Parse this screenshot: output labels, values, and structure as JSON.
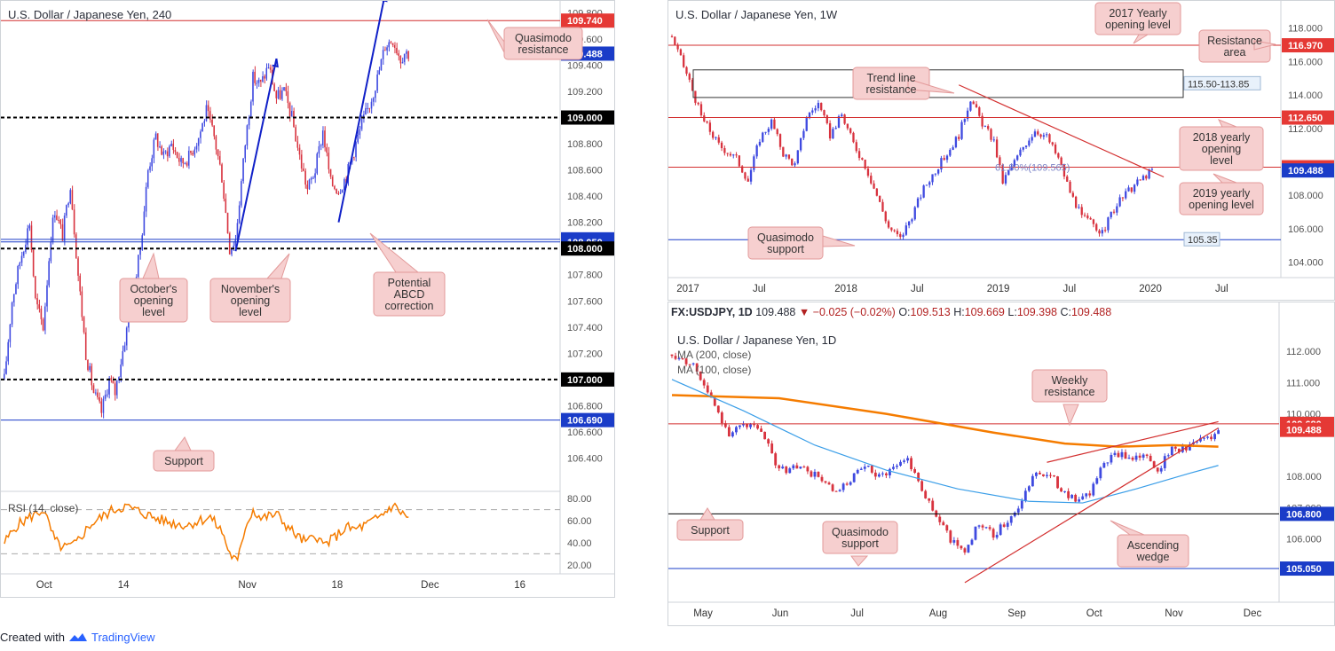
{
  "colors": {
    "bull": "#3f4ae0",
    "bear": "#d8333f",
    "res": "#d32f2f",
    "sup": "#1a3cc8",
    "callout_bg": "#f6cfcf",
    "callout_border": "#e39a9a",
    "sma200": "#f57c00",
    "sma100": "#3a9ee8",
    "rsi": "#f57c00"
  },
  "chart_data": [
    {
      "type": "candlestick",
      "title": "U.S. Dollar / Japanese Yen, 240",
      "x_ticks": [
        "Oct",
        "14",
        "Nov",
        "18",
        "Dec",
        "16"
      ],
      "y_ticks": [
        "109.800",
        "109.600",
        "109.400",
        "109.200",
        "108.800",
        "108.600",
        "108.400",
        "108.200",
        "107.800",
        "107.600",
        "107.400",
        "107.200",
        "106.800",
        "106.600",
        "106.400"
      ],
      "ylim": [
        106.2,
        109.85
      ],
      "path": [
        [
          0,
          107.0
        ],
        [
          4,
          107.6
        ],
        [
          8,
          107.9
        ],
        [
          13,
          108.2
        ],
        [
          16,
          107.6
        ],
        [
          20,
          107.4
        ],
        [
          24,
          108.1
        ],
        [
          26,
          108.3
        ],
        [
          30,
          108.1
        ],
        [
          34,
          108.5
        ],
        [
          38,
          107.8
        ],
        [
          42,
          107.2
        ],
        [
          46,
          106.9
        ],
        [
          50,
          106.75
        ],
        [
          54,
          107.0
        ],
        [
          57,
          106.9
        ],
        [
          62,
          107.3
        ],
        [
          66,
          107.6
        ],
        [
          70,
          108.0
        ],
        [
          74,
          108.6
        ],
        [
          78,
          108.85
        ],
        [
          82,
          108.7
        ],
        [
          86,
          108.8
        ],
        [
          91,
          108.65
        ],
        [
          95,
          108.7
        ],
        [
          100,
          108.85
        ],
        [
          104,
          109.05
        ],
        [
          108,
          108.85
        ],
        [
          112,
          108.55
        ],
        [
          116,
          108.0
        ],
        [
          119,
          108.07
        ],
        [
          124,
          108.8
        ],
        [
          128,
          109.3
        ],
        [
          132,
          109.25
        ],
        [
          136,
          109.4
        ],
        [
          140,
          109.15
        ],
        [
          144,
          109.2
        ],
        [
          148,
          109.0
        ],
        [
          152,
          108.7
        ],
        [
          156,
          108.45
        ],
        [
          160,
          108.6
        ],
        [
          164,
          108.9
        ],
        [
          168,
          108.5
        ],
        [
          172,
          108.45
        ],
        [
          176,
          108.55
        ],
        [
          180,
          108.75
        ],
        [
          184,
          108.95
        ],
        [
          188,
          109.1
        ],
        [
          192,
          109.3
        ],
        [
          196,
          109.55
        ],
        [
          200,
          109.6
        ],
        [
          204,
          109.45
        ],
        [
          206,
          109.5
        ],
        [
          208,
          109.49
        ]
      ],
      "x_end": 208,
      "xlim": [
        0,
        286
      ],
      "x_tick_pos": [
        20,
        62,
        124,
        172,
        218,
        266
      ],
      "h_lines": [
        {
          "price": 109.74,
          "label": "109.740",
          "color": "#d32f2f",
          "label_bg": "#e53935",
          "style": "solid"
        },
        {
          "price": 109.488,
          "label": "109.488",
          "color": "#1a3cc8",
          "label_bg": "#1a3cc8",
          "style": "none"
        },
        {
          "price": 109.0,
          "label": "109.000",
          "color": "#000000",
          "label_bg": "#000000",
          "style": "dashed"
        },
        {
          "price": 108.07,
          "label": "108.070",
          "color": "#1a3cc8",
          "label_bg": "#1a3cc8",
          "style": "solid"
        },
        {
          "price": 108.05,
          "label": "108.050",
          "color": "#1a3cc8",
          "label_bg": "#1a3cc8",
          "style": "solid"
        },
        {
          "price": 108.0,
          "label": "108.000",
          "color": "#000000",
          "label_bg": "#000000",
          "style": "dashed"
        },
        {
          "price": 107.0,
          "label": "107.000",
          "color": "#000000",
          "label_bg": "#000000",
          "style": "dashed"
        },
        {
          "price": 106.69,
          "label": "106.690",
          "color": "#1a3cc8",
          "label_bg": "#1a3cc8",
          "style": "solid"
        }
      ],
      "arrows": [
        [
          [
            119,
            107.98
          ],
          [
            140,
            109.45
          ]
        ],
        [
          [
            172,
            108.2
          ],
          [
            196,
            109.95
          ]
        ]
      ],
      "callouts": [
        {
          "text": [
            "Quasimodo",
            "resistance"
          ]
        },
        {
          "text": [
            "October's",
            "opening",
            "level"
          ]
        },
        {
          "text": [
            "November's",
            "opening",
            "level"
          ]
        },
        {
          "text": [
            "Potential",
            "ABCD",
            "correction"
          ]
        },
        {
          "text": [
            "Support"
          ]
        }
      ],
      "rsi": {
        "label": "RSI (14, close)",
        "y_ticks": [
          "80.00",
          "60.00",
          "40.00",
          "20.00"
        ],
        "levels": [
          70,
          30
        ],
        "path": [
          [
            0,
            40
          ],
          [
            6,
            55
          ],
          [
            12,
            62
          ],
          [
            20,
            70
          ],
          [
            26,
            42
          ],
          [
            30,
            35
          ],
          [
            36,
            38
          ],
          [
            44,
            56
          ],
          [
            50,
            63
          ],
          [
            56,
            70
          ],
          [
            62,
            73
          ],
          [
            70,
            68
          ],
          [
            78,
            62
          ],
          [
            86,
            58
          ],
          [
            94,
            56
          ],
          [
            100,
            60
          ],
          [
            106,
            63
          ],
          [
            112,
            50
          ],
          [
            116,
            30
          ],
          [
            120,
            22
          ],
          [
            124,
            55
          ],
          [
            128,
            70
          ],
          [
            132,
            62
          ],
          [
            140,
            66
          ],
          [
            146,
            54
          ],
          [
            152,
            44
          ],
          [
            156,
            40
          ],
          [
            160,
            48
          ],
          [
            164,
            38
          ],
          [
            168,
            42
          ],
          [
            172,
            48
          ],
          [
            176,
            54
          ],
          [
            180,
            52
          ],
          [
            186,
            56
          ],
          [
            192,
            62
          ],
          [
            196,
            68
          ],
          [
            200,
            74
          ],
          [
            204,
            68
          ],
          [
            208,
            62
          ]
        ]
      }
    },
    {
      "type": "candlestick",
      "title": "U.S. Dollar / Japanese Yen, 1W",
      "x_ticks": [
        "2017",
        "Jul",
        "2018",
        "Jul",
        "2019",
        "Jul",
        "2020",
        "Jul"
      ],
      "y_ticks": [
        "118.000",
        "116.000",
        "114.000",
        "112.000",
        "108.000",
        "106.000",
        "104.000"
      ],
      "ylim": [
        103.4,
        119.2
      ],
      "path": [
        [
          0,
          117.5
        ],
        [
          6,
          114.8
        ],
        [
          10,
          112.7
        ],
        [
          16,
          111.0
        ],
        [
          22,
          110.2
        ],
        [
          26,
          108.9
        ],
        [
          30,
          111.4
        ],
        [
          34,
          112.4
        ],
        [
          38,
          110.5
        ],
        [
          42,
          109.8
        ],
        [
          46,
          112.7
        ],
        [
          50,
          113.5
        ],
        [
          54,
          111.6
        ],
        [
          58,
          112.8
        ],
        [
          62,
          111.1
        ],
        [
          66,
          109.8
        ],
        [
          70,
          108.0
        ],
        [
          74,
          106.1
        ],
        [
          78,
          105.4
        ],
        [
          82,
          106.8
        ],
        [
          86,
          108.4
        ],
        [
          90,
          109.5
        ],
        [
          94,
          110.5
        ],
        [
          98,
          111.6
        ],
        [
          102,
          113.8
        ],
        [
          106,
          112.3
        ],
        [
          110,
          111.2
        ],
        [
          113,
          108.8
        ],
        [
          116,
          109.7
        ],
        [
          120,
          110.9
        ],
        [
          124,
          111.9
        ],
        [
          128,
          111.5
        ],
        [
          132,
          110.2
        ],
        [
          136,
          108.2
        ],
        [
          140,
          106.7
        ],
        [
          144,
          106.3
        ],
        [
          147,
          105.7
        ],
        [
          150,
          106.9
        ],
        [
          154,
          107.9
        ],
        [
          158,
          108.6
        ],
        [
          162,
          109.2
        ],
        [
          164,
          109.49
        ]
      ],
      "x_end": 164,
      "xlim": [
        0,
        208
      ],
      "x_tick_pos": [
        4,
        30,
        58,
        84,
        110,
        136,
        162,
        188
      ],
      "h_lines": [
        {
          "price": 116.97,
          "label": "116.970",
          "color": "#d32f2f",
          "label_bg": "#e53935",
          "style": "solid"
        },
        {
          "price": 112.65,
          "label": "112.650",
          "color": "#d32f2f",
          "label_bg": "#e53935",
          "style": "solid"
        },
        {
          "price": 109.68,
          "label": "109.680",
          "color": "#d32f2f",
          "label_bg": "#e53935",
          "style": "solid"
        },
        {
          "price": 109.488,
          "label": "109.488",
          "color": "#1a3cc8",
          "label_bg": "#1a3cc8",
          "style": "none"
        },
        {
          "price": 105.35,
          "label": "",
          "color": "#1a3cc8",
          "label_bg": "",
          "style": "solid"
        }
      ],
      "box": {
        "label": "115.50-113.85",
        "top": 115.5,
        "bottom": 113.85
      },
      "box_label_small": "105.35",
      "fib_label": "61.80%(109.565)",
      "trendline": [
        [
          98,
          114.6
        ],
        [
          168,
          109.1
        ]
      ],
      "callouts": [
        {
          "text": [
            "2017 Yearly",
            "opening level"
          ]
        },
        {
          "text": [
            "Resistance",
            "area"
          ]
        },
        {
          "text": [
            "Trend line",
            "resistance"
          ]
        },
        {
          "text": [
            "2018 yearly",
            "opening",
            "level"
          ]
        },
        {
          "text": [
            "2019 yearly",
            "opening level"
          ]
        },
        {
          "text": [
            "Quasimodo",
            "support"
          ]
        }
      ]
    },
    {
      "type": "candlestick",
      "title": "U.S. Dollar / Japanese Yen, 1D",
      "info": {
        "symbol": "FX:USDJPY, 1D",
        "last": "109.488",
        "change": "−0.025 (−0.02%)",
        "o": "O:",
        "o_val": "109.513",
        "h": "H:",
        "h_val": "109.669",
        "l": "L:",
        "l_val": "109.398",
        "c": "C:",
        "c_val": "109.488"
      },
      "sma_labels": [
        "MA (200, close)",
        "MA (100, close)"
      ],
      "x_ticks": [
        "May",
        "Jun",
        "Jul",
        "Aug",
        "Sep",
        "Oct",
        "Nov",
        "Dec"
      ],
      "y_ticks": [
        "112.000",
        "111.000",
        "110.000",
        "108.000",
        "107.000",
        "106.000"
      ],
      "ylim": [
        104.2,
        112.6
      ],
      "path": [
        [
          0,
          111.9
        ],
        [
          6,
          111.6
        ],
        [
          12,
          110.2
        ],
        [
          16,
          109.4
        ],
        [
          22,
          109.7
        ],
        [
          26,
          109.2
        ],
        [
          30,
          108.2
        ],
        [
          36,
          108.3
        ],
        [
          42,
          107.9
        ],
        [
          46,
          107.4
        ],
        [
          50,
          107.9
        ],
        [
          54,
          108.3
        ],
        [
          58,
          108.0
        ],
        [
          62,
          108.3
        ],
        [
          66,
          108.6
        ],
        [
          70,
          107.6
        ],
        [
          74,
          106.7
        ],
        [
          78,
          106.0
        ],
        [
          82,
          105.6
        ],
        [
          86,
          106.5
        ],
        [
          90,
          106.1
        ],
        [
          94,
          106.6
        ],
        [
          98,
          107.2
        ],
        [
          102,
          108.2
        ],
        [
          106,
          108.0
        ],
        [
          110,
          107.5
        ],
        [
          114,
          107.2
        ],
        [
          117,
          107.4
        ],
        [
          120,
          108.3
        ],
        [
          124,
          108.7
        ],
        [
          128,
          108.6
        ],
        [
          132,
          108.7
        ],
        [
          136,
          108.2
        ],
        [
          140,
          108.9
        ],
        [
          144,
          108.9
        ],
        [
          148,
          109.2
        ],
        [
          152,
          109.35
        ],
        [
          153,
          109.49
        ]
      ],
      "x_end": 153,
      "xlim": [
        0,
        170
      ],
      "x_tick_pos": [
        8,
        30,
        52,
        74,
        96,
        118,
        140,
        162
      ],
      "sma200": [
        [
          0,
          110.6
        ],
        [
          30,
          110.5
        ],
        [
          60,
          110.0
        ],
        [
          90,
          109.4
        ],
        [
          110,
          109.05
        ],
        [
          125,
          108.95
        ],
        [
          140,
          109.0
        ],
        [
          153,
          108.95
        ]
      ],
      "sma100": [
        [
          0,
          111.1
        ],
        [
          20,
          110.1
        ],
        [
          40,
          109.0
        ],
        [
          60,
          108.2
        ],
        [
          80,
          107.6
        ],
        [
          100,
          107.2
        ],
        [
          115,
          107.15
        ],
        [
          130,
          107.6
        ],
        [
          145,
          108.1
        ],
        [
          153,
          108.35
        ]
      ],
      "h_lines": [
        {
          "price": 109.68,
          "label": "109.680",
          "color": "#d32f2f",
          "label_bg": "#e53935",
          "style": "solid"
        },
        {
          "price": 109.488,
          "label": "109.488",
          "color": "#d32f2f",
          "label_bg": "#e53935",
          "style": "none"
        },
        {
          "price": 106.8,
          "label": "106.800",
          "color": "#000000",
          "label_bg": "#1a3cc8",
          "style": "solid"
        },
        {
          "price": 105.05,
          "label": "105.050",
          "color": "#1a3cc8",
          "label_bg": "#1a3cc8",
          "style": "solid"
        }
      ],
      "wedge": [
        [
          [
            82,
            104.6
          ],
          [
            153,
            109.55
          ]
        ],
        [
          [
            105,
            108.45
          ],
          [
            153,
            109.75
          ]
        ]
      ],
      "callouts": [
        {
          "text": [
            "Weekly",
            "resistance"
          ]
        },
        {
          "text": [
            "Support"
          ]
        },
        {
          "text": [
            "Quasimodo",
            "support"
          ]
        },
        {
          "text": [
            "Ascending",
            "wedge"
          ]
        }
      ]
    }
  ],
  "footer": {
    "created": "Created with",
    "brand": "TradingView"
  }
}
